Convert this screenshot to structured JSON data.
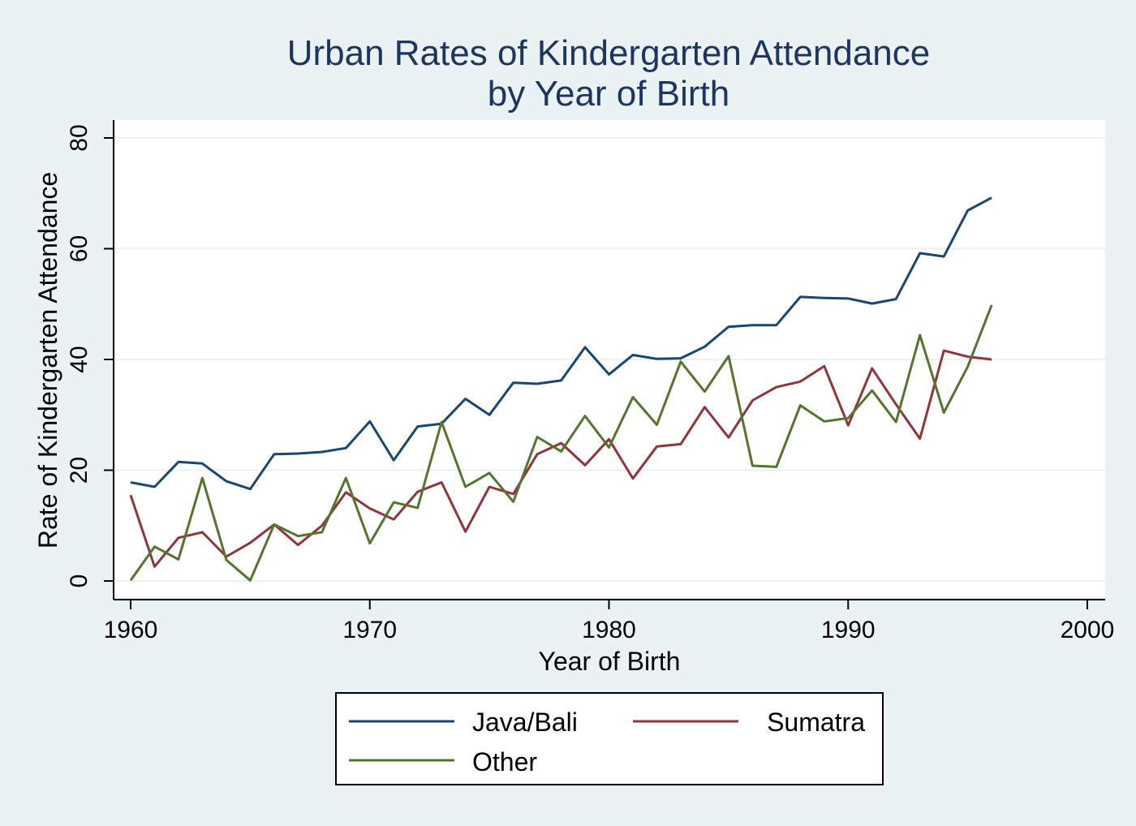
{
  "chart_data": {
    "type": "line",
    "title": "Urban Rates of Kindergarten Attendance",
    "subtitle": "by Year of Birth",
    "xlabel": "Year of Birth",
    "ylabel": "Rate of Kindergarten Attendance",
    "xlim": [
      1960,
      2000
    ],
    "ylim": [
      0,
      80
    ],
    "xticks": [
      1960,
      1970,
      1980,
      1990,
      2000
    ],
    "yticks": [
      0,
      20,
      40,
      60,
      80
    ],
    "grid": true,
    "legend_position": "bottom",
    "x": [
      1960,
      1961,
      1962,
      1963,
      1964,
      1965,
      1966,
      1967,
      1968,
      1969,
      1970,
      1971,
      1972,
      1973,
      1974,
      1975,
      1976,
      1977,
      1978,
      1979,
      1980,
      1981,
      1982,
      1983,
      1984,
      1985,
      1986,
      1987,
      1988,
      1989,
      1990,
      1991,
      1992,
      1993,
      1994,
      1995,
      1996
    ],
    "series": [
      {
        "name": "Java/Bali",
        "color": "#1a476f",
        "values": [
          17.8,
          17.0,
          21.5,
          21.2,
          18.0,
          16.6,
          22.9,
          23.0,
          23.3,
          24.0,
          28.8,
          21.8,
          27.9,
          28.4,
          32.9,
          30.0,
          35.8,
          35.6,
          36.2,
          42.2,
          37.3,
          40.8,
          40.1,
          40.2,
          42.3,
          45.9,
          46.2,
          46.2,
          51.3,
          51.1,
          51.0,
          50.1,
          50.9,
          59.2,
          58.6,
          66.9,
          69.2
        ]
      },
      {
        "name": "Sumatra",
        "color": "#90353b",
        "values": [
          15.5,
          2.6,
          7.8,
          8.8,
          4.4,
          6.9,
          10.2,
          6.5,
          10.0,
          16.0,
          13.1,
          11.1,
          16.1,
          17.8,
          8.9,
          17.0,
          15.7,
          22.9,
          24.9,
          20.9,
          25.6,
          18.5,
          24.3,
          24.7,
          31.4,
          25.9,
          32.6,
          35.0,
          36.0,
          38.8,
          28.1,
          38.4,
          31.9,
          25.7,
          41.6,
          40.5,
          40.0
        ]
      },
      {
        "name": "Other",
        "color": "#55752f",
        "values": [
          0.1,
          6.2,
          3.9,
          18.6,
          3.8,
          0.1,
          10.2,
          8.1,
          8.8,
          18.6,
          6.8,
          14.2,
          13.2,
          28.7,
          17.0,
          19.5,
          14.3,
          26.0,
          23.4,
          29.8,
          24.1,
          33.2,
          28.2,
          39.6,
          34.2,
          40.6,
          20.8,
          20.6,
          31.7,
          28.8,
          29.4,
          34.4,
          28.7,
          44.4,
          30.4,
          38.7,
          49.8
        ]
      }
    ]
  }
}
